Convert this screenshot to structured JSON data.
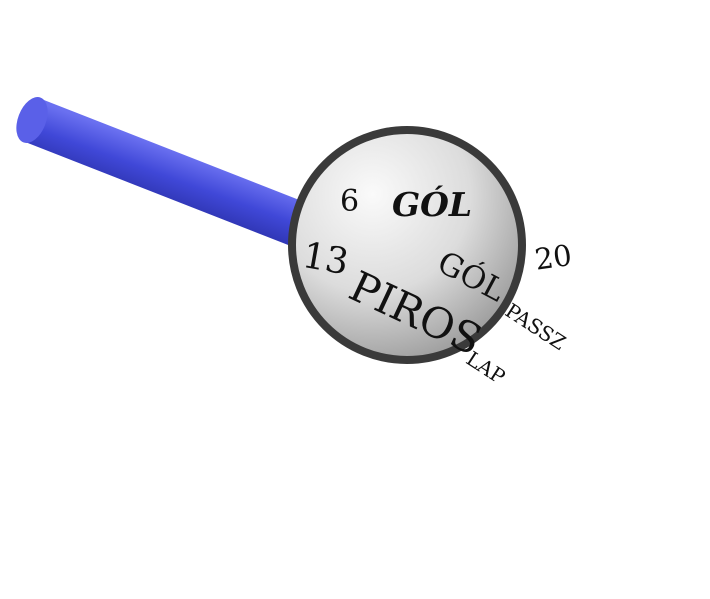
{
  "words": {
    "six": "6",
    "gol_bold": "GÓL",
    "thirteen": "13",
    "gol": "GÓL",
    "twenty": "20",
    "piros": "PIROS",
    "passz": "PASSZ",
    "lap": "LAP"
  },
  "colors": {
    "handle": "#4a4fd8",
    "rim": "#3a3a3a",
    "lens_light": "#f4f4f4",
    "lens_dark": "#8a8a8a",
    "text": "#111111"
  }
}
